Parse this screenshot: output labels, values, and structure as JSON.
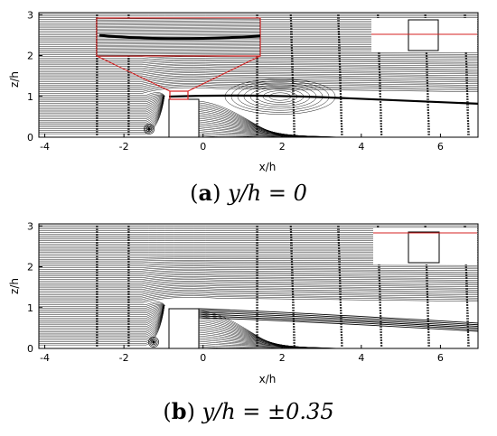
{
  "panels": [
    {
      "id": "a",
      "y_label": "z/h",
      "x_label": "x/h",
      "x_ticks": [
        "-4",
        "-2",
        "0",
        "2",
        "4",
        "6"
      ],
      "y_ticks": [
        "0",
        "1",
        "2",
        "3"
      ],
      "caption_tag": "a",
      "caption_math": "y/h = 0",
      "has_zoom_inset": true
    },
    {
      "id": "b",
      "y_label": "z/h",
      "x_label": "x/h",
      "x_ticks": [
        "-4",
        "-2",
        "0",
        "2",
        "4",
        "6"
      ],
      "y_ticks": [
        "0",
        "1",
        "2",
        "3"
      ],
      "caption_tag": "b",
      "caption_math": "y/h = ±0.35",
      "has_zoom_inset": false
    }
  ],
  "colors": {
    "streamline": "#000000",
    "highlight": "#d62020",
    "obstacle": "#ffffff"
  }
}
